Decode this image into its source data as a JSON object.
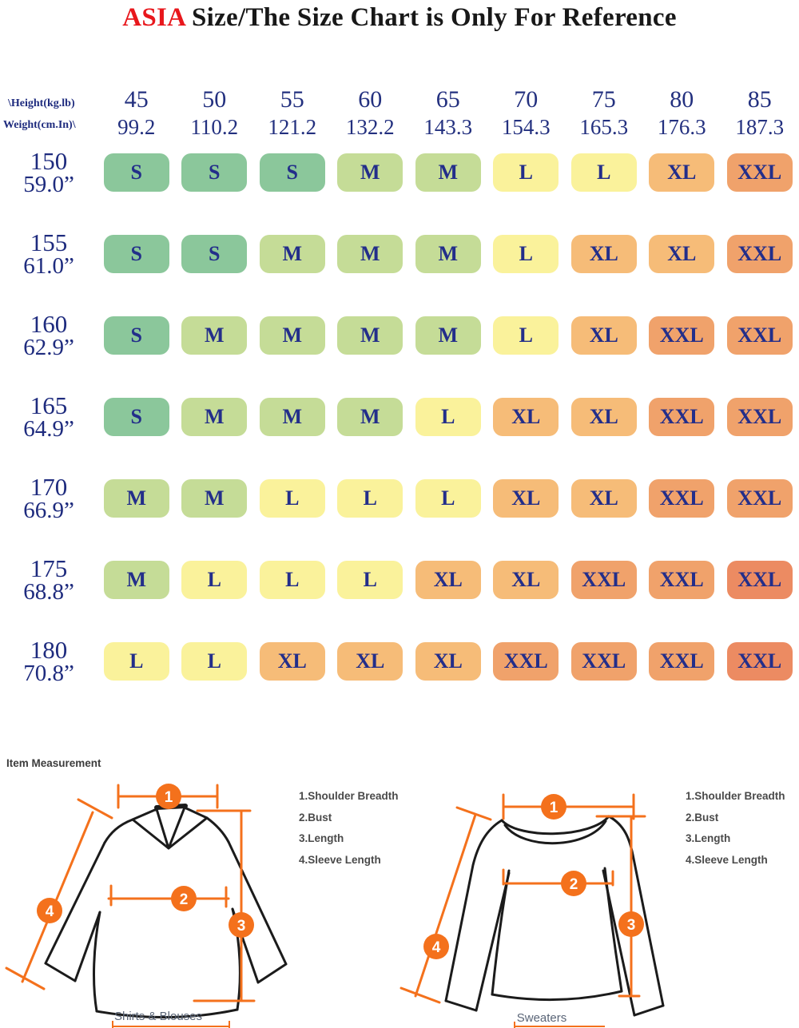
{
  "title": {
    "highlight": "ASIA",
    "rest": " Size/The Size Chart is Only For Reference"
  },
  "table": {
    "corner": {
      "line1": "\\Height(kg.lb)",
      "line2": "Weight(cm.In)\\"
    },
    "columns": [
      {
        "kg": "45",
        "lb": "99.2"
      },
      {
        "kg": "50",
        "lb": "110.2"
      },
      {
        "kg": "55",
        "lb": "121.2"
      },
      {
        "kg": "60",
        "lb": "132.2"
      },
      {
        "kg": "65",
        "lb": "143.3"
      },
      {
        "kg": "70",
        "lb": "154.3"
      },
      {
        "kg": "75",
        "lb": "165.3"
      },
      {
        "kg": "80",
        "lb": "176.3"
      },
      {
        "kg": "85",
        "lb": "187.3"
      }
    ],
    "rows": [
      {
        "cm": "150",
        "inch": "59.0”",
        "cells": [
          "S",
          "S",
          "S",
          "M",
          "M",
          "L",
          "L",
          "XL",
          "XXL"
        ]
      },
      {
        "cm": "155",
        "inch": "61.0”",
        "cells": [
          "S",
          "S",
          "M",
          "M",
          "M",
          "L",
          "XL",
          "XL",
          "XXL"
        ]
      },
      {
        "cm": "160",
        "inch": "62.9”",
        "cells": [
          "S",
          "M",
          "M",
          "M",
          "M",
          "L",
          "XL",
          "XXL",
          "XXL"
        ]
      },
      {
        "cm": "165",
        "inch": "64.9”",
        "cells": [
          "S",
          "M",
          "M",
          "M",
          "L",
          "XL",
          "XL",
          "XXL",
          "XXL"
        ]
      },
      {
        "cm": "170",
        "inch": "66.9”",
        "cells": [
          "M",
          "M",
          "L",
          "L",
          "L",
          "XL",
          "XL",
          "XXL",
          "XXL"
        ]
      },
      {
        "cm": "175",
        "inch": "68.8”",
        "cells": [
          "M",
          "L",
          "L",
          "L",
          "XL",
          "XL",
          "XXL",
          "XXL",
          "XXL"
        ]
      },
      {
        "cm": "180",
        "inch": "70.8”",
        "cells": [
          "L",
          "L",
          "XL",
          "XL",
          "XL",
          "XXL",
          "XXL",
          "XXL",
          "XXL"
        ]
      }
    ],
    "deep_cells": [
      [
        5,
        8
      ],
      [
        6,
        8
      ]
    ]
  },
  "colors": {
    "S": "#8bc79b",
    "M": "#c5dc97",
    "L": "#faf29b",
    "XL": "#f6bc78",
    "XXL": "#f0a26b",
    "XXL_DEEP": "#ec8b62",
    "size_text": "#232e8a",
    "header_text": "#1e2b7e",
    "title_red": "#e8171c",
    "diagram_orange": "#f4711c"
  },
  "measurement": {
    "heading": "Item Measurement",
    "legend": [
      "1.Shoulder Breadth",
      "2.Bust",
      "3.Length",
      "4.Sleeve Length"
    ],
    "markers": [
      "1",
      "2",
      "3",
      "4"
    ],
    "captions": {
      "left": "Shirts & Blouses",
      "right": "Sweaters"
    }
  },
  "chart_data": {
    "type": "table",
    "title": "ASIA Size/The Size Chart is Only For Reference",
    "corner_label_top": "\\Height(kg.lb)",
    "corner_label_bottom": "Weight(cm.In)\\",
    "columns_weight_kg": [
      45,
      50,
      55,
      60,
      65,
      70,
      75,
      80,
      85
    ],
    "columns_weight_lb": [
      99.2,
      110.2,
      121.2,
      132.2,
      143.3,
      154.3,
      165.3,
      176.3,
      187.3
    ],
    "rows_height_cm": [
      150,
      155,
      160,
      165,
      170,
      175,
      180
    ],
    "rows_height_in": [
      "59.0”",
      "61.0”",
      "62.9”",
      "64.9”",
      "66.9”",
      "68.8”",
      "70.8”"
    ],
    "sizes": [
      [
        "S",
        "S",
        "S",
        "M",
        "M",
        "L",
        "L",
        "XL",
        "XXL"
      ],
      [
        "S",
        "S",
        "M",
        "M",
        "M",
        "L",
        "XL",
        "XL",
        "XXL"
      ],
      [
        "S",
        "M",
        "M",
        "M",
        "M",
        "L",
        "XL",
        "XXL",
        "XXL"
      ],
      [
        "S",
        "M",
        "M",
        "M",
        "L",
        "XL",
        "XL",
        "XXL",
        "XXL"
      ],
      [
        "M",
        "M",
        "L",
        "L",
        "L",
        "XL",
        "XL",
        "XXL",
        "XXL"
      ],
      [
        "M",
        "L",
        "L",
        "L",
        "XL",
        "XL",
        "XXL",
        "XXL",
        "XXL"
      ],
      [
        "L",
        "L",
        "XL",
        "XL",
        "XL",
        "XXL",
        "XXL",
        "XXL",
        "XXL"
      ]
    ]
  }
}
